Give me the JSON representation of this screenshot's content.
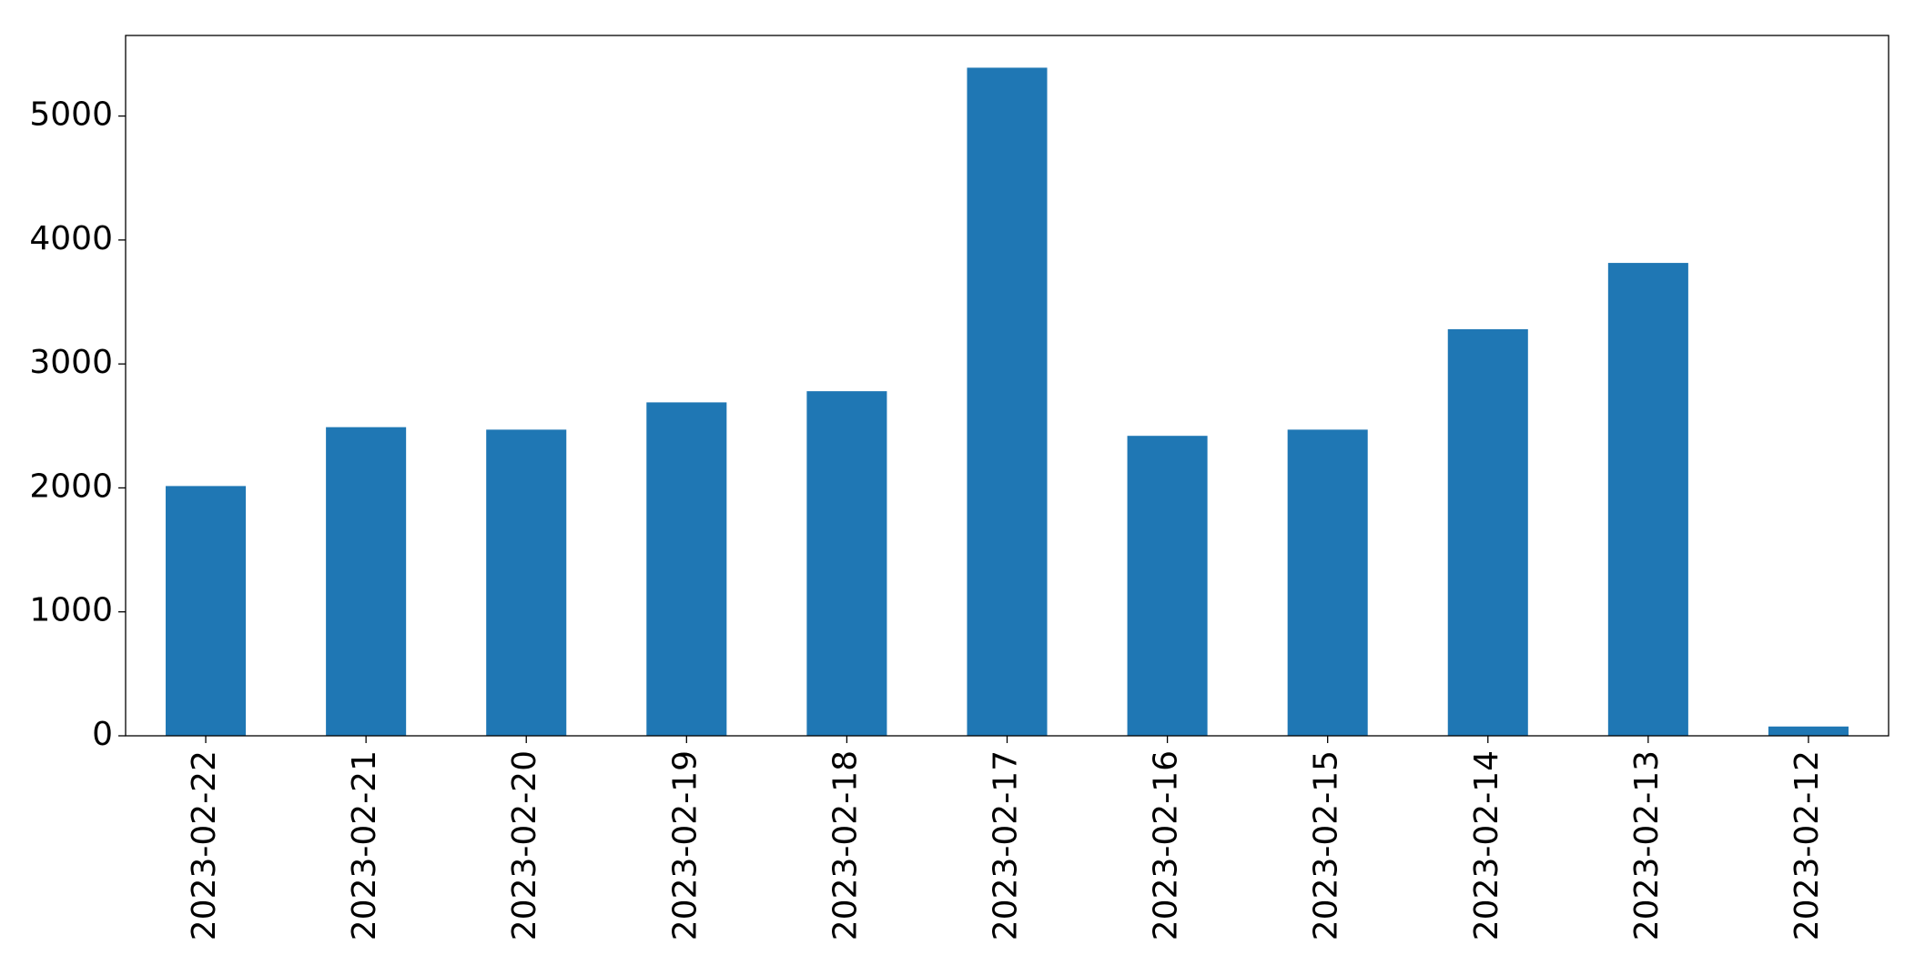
{
  "chart_data": {
    "type": "bar",
    "categories": [
      "2023-02-22",
      "2023-02-21",
      "2023-02-20",
      "2023-02-19",
      "2023-02-18",
      "2023-02-17",
      "2023-02-16",
      "2023-02-15",
      "2023-02-14",
      "2023-02-13",
      "2023-02-12"
    ],
    "values": [
      2015,
      2490,
      2470,
      2690,
      2780,
      5390,
      2420,
      2470,
      3280,
      3815,
      75
    ],
    "color": "#1f77b4",
    "ylim": [
      0,
      5650
    ],
    "yticks": [
      0,
      1000,
      2000,
      3000,
      4000,
      5000
    ],
    "grid": false
  }
}
